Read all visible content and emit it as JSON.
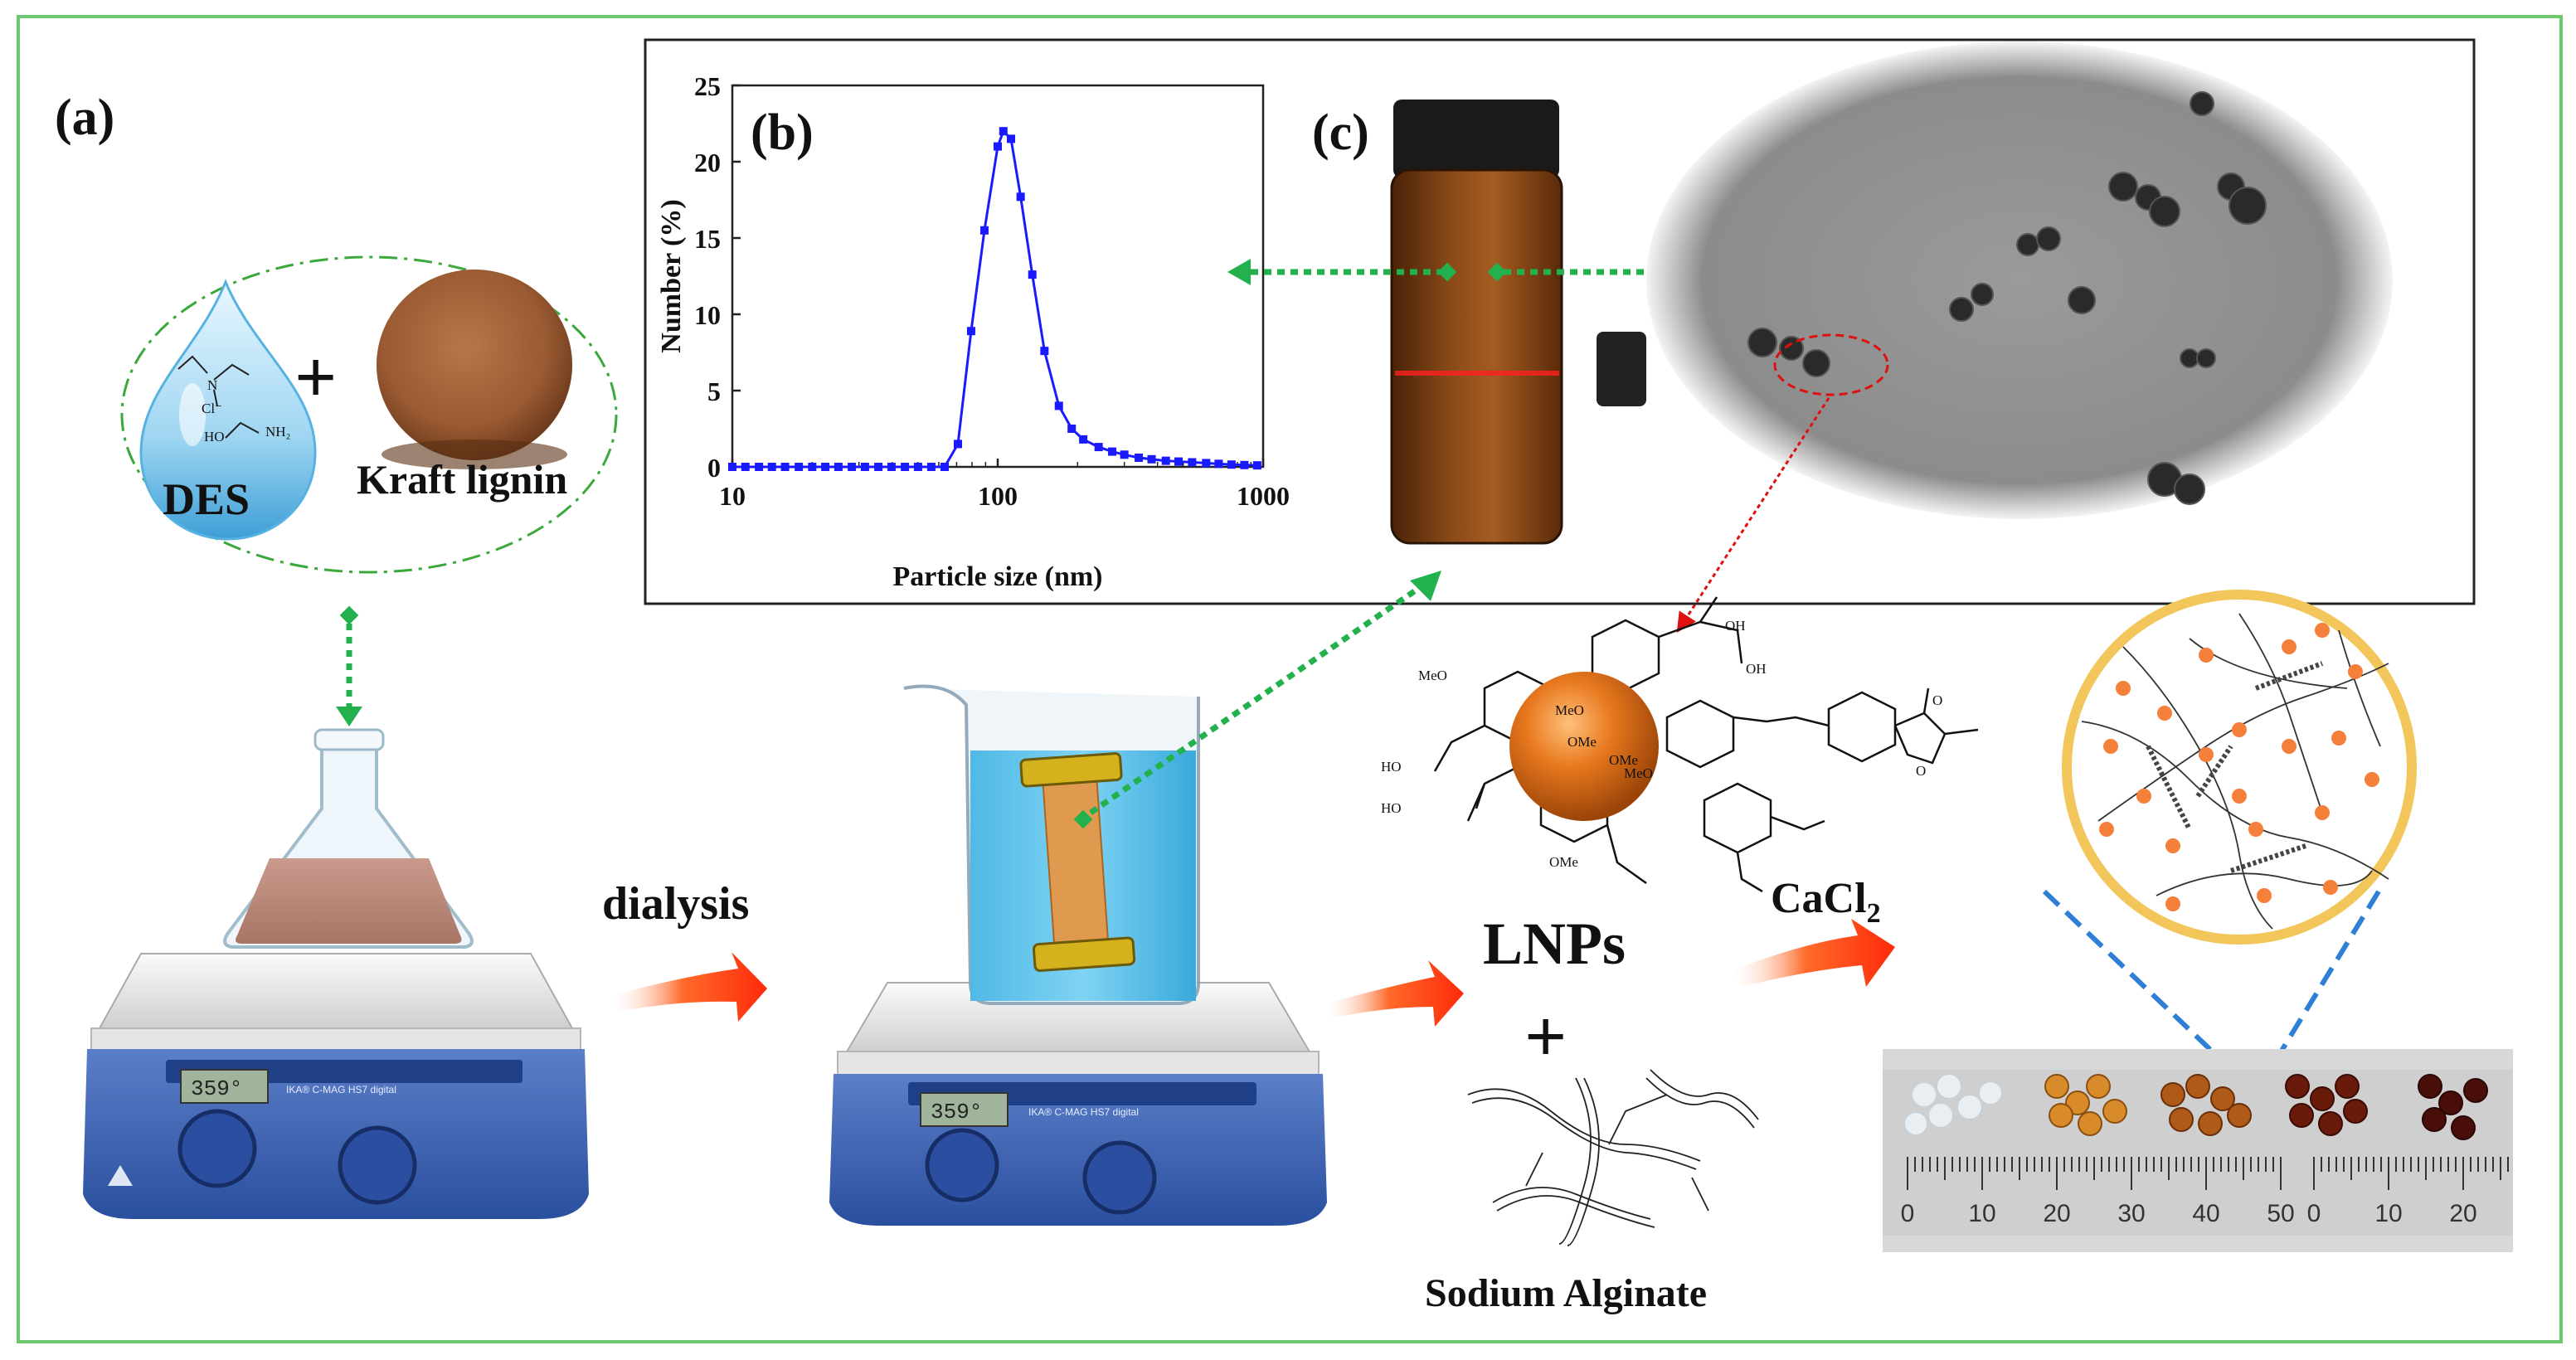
{
  "panels": {
    "a": "(a)",
    "b": "(b)",
    "c": "(c)"
  },
  "labels": {
    "des": "DES",
    "kraft_lignin": "Kraft lignin",
    "plus_top": "+",
    "dialysis": "dialysis",
    "lnps": "LNPs",
    "plus_bottom": "+",
    "sodium_alginate": "Sodium Alginate",
    "cacl2_main": "CaCl",
    "cacl2_sub": "2"
  },
  "des_structure": {
    "n": "N",
    "cl": "Cl⁻",
    "ho": "HO",
    "nh2": "NH₂"
  },
  "hotplate": {
    "display": "359°",
    "brand": "IKA® C-MAG HS7 digital"
  },
  "lnp_structure": {
    "meo": "MeO",
    "ome": "OMe",
    "oh": "OH",
    "ho": "HO",
    "o": "O"
  },
  "ruler": {
    "ticks_left": [
      "0",
      "10",
      "20",
      "30",
      "40",
      "50"
    ],
    "ticks_right": [
      "0",
      "10",
      "20"
    ]
  },
  "colors": {
    "frame": "#6fc76f",
    "dashed_arrow": "#22b14c",
    "flow_arrow": "#ff3b14",
    "chart_line": "#1a1aff",
    "lnp_sphere": "#e8781e",
    "zoom_ring": "#f2c65a",
    "zoom_dash": "#2f7fd6"
  },
  "chart_data": {
    "type": "line",
    "xlabel": "Particle size (nm)",
    "ylabel": "Number (%)",
    "xscale": "log",
    "xlim": [
      10,
      1000
    ],
    "ylim": [
      0,
      25
    ],
    "xticks": [
      "10",
      "100",
      "1000"
    ],
    "yticks": [
      "0",
      "5",
      "10",
      "15",
      "20",
      "25"
    ],
    "grid": false,
    "series": [
      {
        "color": "#1a1aff",
        "marker": "square",
        "points": [
          [
            10,
            0
          ],
          [
            11.2,
            0
          ],
          [
            12.6,
            0
          ],
          [
            14.1,
            0
          ],
          [
            15.8,
            0
          ],
          [
            17.8,
            0
          ],
          [
            20,
            0
          ],
          [
            22.4,
            0
          ],
          [
            25.1,
            0
          ],
          [
            28.2,
            0
          ],
          [
            31.6,
            0
          ],
          [
            35.5,
            0
          ],
          [
            39.8,
            0
          ],
          [
            44.7,
            0
          ],
          [
            50.1,
            0
          ],
          [
            56.2,
            0
          ],
          [
            63.1,
            0
          ],
          [
            70.8,
            1.5
          ],
          [
            79.4,
            8.9
          ],
          [
            89.1,
            15.5
          ],
          [
            100,
            21
          ],
          [
            105,
            22
          ],
          [
            112.2,
            21.5
          ],
          [
            122,
            17.7
          ],
          [
            135,
            12.6
          ],
          [
            150,
            7.6
          ],
          [
            170,
            4
          ],
          [
            190,
            2.5
          ],
          [
            210,
            1.8
          ],
          [
            240,
            1.3
          ],
          [
            270,
            1
          ],
          [
            300,
            0.8
          ],
          [
            340,
            0.6
          ],
          [
            380,
            0.5
          ],
          [
            430,
            0.4
          ],
          [
            480,
            0.35
          ],
          [
            540,
            0.3
          ],
          [
            610,
            0.25
          ],
          [
            680,
            0.2
          ],
          [
            760,
            0.15
          ],
          [
            850,
            0.12
          ],
          [
            950,
            0.1
          ]
        ]
      }
    ]
  }
}
